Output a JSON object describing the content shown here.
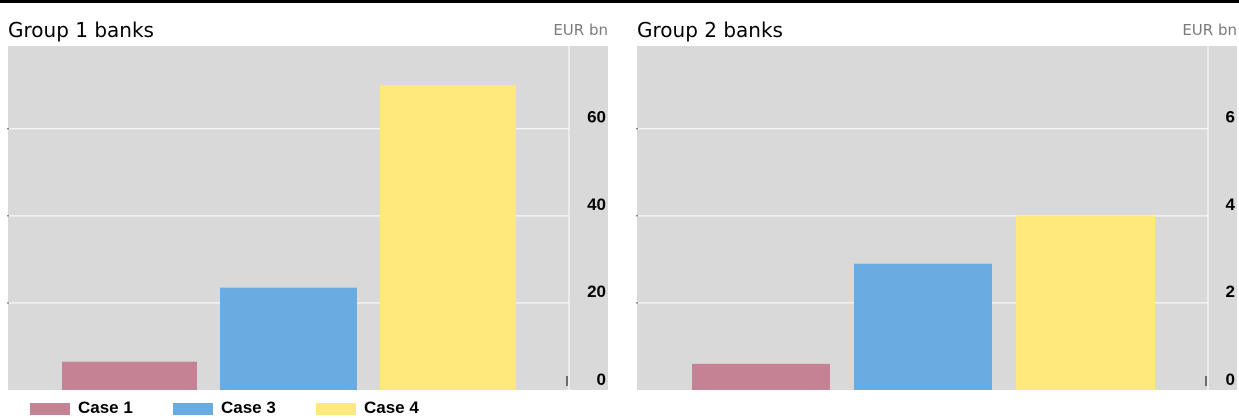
{
  "colors": {
    "plot_background": "#d9d9d9",
    "gridline": "#ffffff",
    "case1": "#c58295",
    "case3": "#6aace1",
    "case4": "#ffe97a"
  },
  "panels": {
    "left": {
      "title": "Group 1 banks",
      "unit": "EUR bn"
    },
    "right": {
      "title": "Group 2 banks",
      "unit": "EUR bn"
    }
  },
  "legend": [
    {
      "label": "Case 1",
      "color": "#c58295"
    },
    {
      "label": "Case 3",
      "color": "#6aace1"
    },
    {
      "label": "Case 4",
      "color": "#ffe97a"
    }
  ],
  "chart_data": [
    {
      "type": "bar",
      "title": "Group 1 banks",
      "ylabel": "EUR bn",
      "categories": [
        "Case 1",
        "Case 3",
        "Case 4"
      ],
      "values": [
        6.5,
        23.5,
        70
      ],
      "colors": [
        "#c58295",
        "#6aace1",
        "#ffe97a"
      ],
      "ylim": [
        0,
        79
      ],
      "yticks": [
        0,
        20,
        40,
        60
      ],
      "y_axis_side": "right",
      "grid": true
    },
    {
      "type": "bar",
      "title": "Group 2 banks",
      "ylabel": "EUR bn",
      "categories": [
        "Case 1",
        "Case 3",
        "Case 4"
      ],
      "values": [
        0.6,
        2.9,
        4.0
      ],
      "colors": [
        "#c58295",
        "#6aace1",
        "#ffe97a"
      ],
      "ylim": [
        0,
        7.9
      ],
      "yticks": [
        0,
        2,
        4,
        6
      ],
      "y_axis_side": "right",
      "grid": true
    }
  ]
}
